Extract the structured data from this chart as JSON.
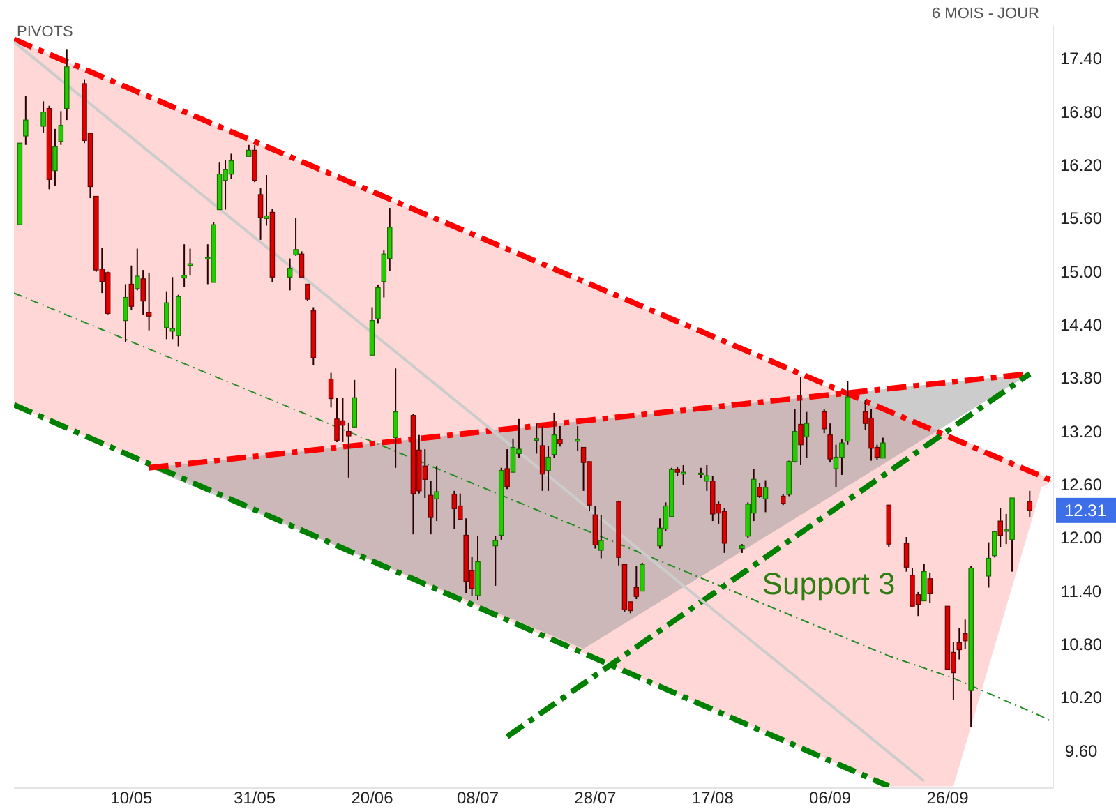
{
  "chart_data": {
    "type": "candlestick",
    "annotations": [
      "PIVOTS",
      "6 MOIS - JOUR",
      "Support 3",
      {
        "text": "12.31",
        "y": 12.31
      }
    ],
    "xlim": [
      "--04-20",
      "--10-14"
    ],
    "ylim": [
      9.18,
      17.78
    ],
    "xticks": [
      {
        "value": "--05-10",
        "label": "10/05"
      },
      {
        "value": "--05-31",
        "label": "31/05"
      },
      {
        "value": "--06-20",
        "label": "20/06"
      },
      {
        "value": "--07-08",
        "label": "08/07"
      },
      {
        "value": "--07-28",
        "label": "28/07"
      },
      {
        "value": "--08-17",
        "label": "17/08"
      },
      {
        "value": "--09-06",
        "label": "06/09"
      },
      {
        "value": "--09-26",
        "label": "26/09"
      }
    ],
    "yticks": [
      {
        "value": 9.6,
        "label": "9.60"
      },
      {
        "value": 10.2,
        "label": "10.20"
      },
      {
        "value": 10.8,
        "label": "10.80"
      },
      {
        "value": 11.4,
        "label": "11.40"
      },
      {
        "value": 12.0,
        "label": "12.00"
      },
      {
        "value": 12.6,
        "label": "12.60"
      },
      {
        "value": 13.2,
        "label": "13.20"
      },
      {
        "value": 13.8,
        "label": "13.80"
      },
      {
        "value": 14.4,
        "label": "14.40"
      },
      {
        "value": 15.0,
        "label": "15.00"
      },
      {
        "value": 15.6,
        "label": "15.60"
      },
      {
        "value": 16.2,
        "label": "16.20"
      },
      {
        "value": 16.8,
        "label": "16.80"
      },
      {
        "value": 17.4,
        "label": "17.40"
      }
    ],
    "x": [
      "--04-21",
      "--04-22",
      "--04-25",
      "--04-26",
      "--04-27",
      "--04-28",
      "--04-29",
      "--05-02",
      "--05-03",
      "--05-04",
      "--05-05",
      "--05-06",
      "--05-09",
      "--05-10",
      "--05-11",
      "--05-12",
      "--05-13",
      "--05-16",
      "--05-17",
      "--05-18",
      "--05-19",
      "--05-20",
      "--05-23",
      "--05-24",
      "--05-25",
      "--05-26",
      "--05-27",
      "--05-30",
      "--05-31",
      "--06-01",
      "--06-02",
      "--06-03",
      "--06-06",
      "--06-07",
      "--06-08",
      "--06-09",
      "--06-10",
      "--06-13",
      "--06-14",
      "--06-15",
      "--06-16",
      "--06-17",
      "--06-20",
      "--06-21",
      "--06-22",
      "--06-23",
      "--06-24",
      "--06-27",
      "--06-28",
      "--06-29",
      "--06-30",
      "--07-01",
      "--07-04",
      "--07-05",
      "--07-06",
      "--07-07",
      "--07-08",
      "--07-11",
      "--07-12",
      "--07-13",
      "--07-14",
      "--07-15",
      "--07-18",
      "--07-19",
      "--07-20",
      "--07-21",
      "--07-22",
      "--07-25",
      "--07-26",
      "--07-27",
      "--07-28",
      "--07-29",
      "--08-01",
      "--08-02",
      "--08-03",
      "--08-04",
      "--08-05",
      "--08-08",
      "--08-09",
      "--08-10",
      "--08-11",
      "--08-12",
      "--08-15",
      "--08-16",
      "--08-17",
      "--08-18",
      "--08-19",
      "--08-22",
      "--08-23",
      "--08-24",
      "--08-25",
      "--08-26",
      "--08-29",
      "--08-30",
      "--08-31",
      "--09-01",
      "--09-02",
      "--09-05",
      "--09-06",
      "--09-07",
      "--09-08",
      "--09-09",
      "--09-12",
      "--09-13",
      "--09-14",
      "--09-15",
      "--09-16",
      "--09-19",
      "--09-20",
      "--09-21",
      "--09-22",
      "--09-23",
      "--09-26",
      "--09-27",
      "--09-28",
      "--09-29",
      "--09-30",
      "--10-03",
      "--10-04",
      "--10-05",
      "--10-06",
      "--10-07",
      "--10-10"
    ],
    "ohlc": [
      [
        15.53,
        16.45,
        15.53,
        16.45
      ],
      [
        16.53,
        16.98,
        16.43,
        16.71
      ],
      [
        16.64,
        16.92,
        16.57,
        16.8
      ],
      [
        16.84,
        16.87,
        15.93,
        16.04
      ],
      [
        16.14,
        16.61,
        15.97,
        16.41
      ],
      [
        16.47,
        16.81,
        16.43,
        16.65
      ],
      [
        16.84,
        17.51,
        16.71,
        17.31
      ],
      [
        17.12,
        17.17,
        16.45,
        16.48
      ],
      [
        16.56,
        16.56,
        15.83,
        15.96
      ],
      [
        15.85,
        15.85,
        15.0,
        15.02
      ],
      [
        15.03,
        15.27,
        14.76,
        14.89
      ],
      [
        14.99,
        15.0,
        14.52,
        14.53
      ],
      [
        14.45,
        14.86,
        14.21,
        14.71
      ],
      [
        14.86,
        15.07,
        14.57,
        14.61
      ],
      [
        14.81,
        15.26,
        14.79,
        14.95
      ],
      [
        14.92,
        15.02,
        14.51,
        14.67
      ],
      [
        14.54,
        14.99,
        14.34,
        14.5
      ],
      [
        14.37,
        14.78,
        14.24,
        14.65
      ],
      [
        14.33,
        14.94,
        14.24,
        14.36
      ],
      [
        14.28,
        14.74,
        14.16,
        14.72
      ],
      [
        14.93,
        15.31,
        14.83,
        14.96
      ],
      [
        15.07,
        15.26,
        14.96,
        15.09
      ],
      [
        15.16,
        15.31,
        14.86,
        15.16
      ],
      [
        14.88,
        15.56,
        14.88,
        15.53
      ],
      [
        15.7,
        16.23,
        15.7,
        16.1
      ],
      [
        16.03,
        16.26,
        15.7,
        16.15
      ],
      [
        16.1,
        16.33,
        16.05,
        16.25
      ],
      [
        16.3,
        16.43,
        16.3,
        16.37
      ],
      [
        16.37,
        16.43,
        16.01,
        16.03
      ],
      [
        15.87,
        15.94,
        15.36,
        15.61
      ],
      [
        15.6,
        16.09,
        15.52,
        15.63
      ],
      [
        15.67,
        15.71,
        14.88,
        14.94
      ],
      [
        14.94,
        15.15,
        14.79,
        15.04
      ],
      [
        15.19,
        15.61,
        15.18,
        15.25
      ],
      [
        15.2,
        15.23,
        14.94,
        14.94
      ],
      [
        14.86,
        14.86,
        14.67,
        14.69
      ],
      [
        14.56,
        14.6,
        13.95,
        14.03
      ],
      [
        13.79,
        13.86,
        13.47,
        13.57
      ],
      [
        13.34,
        13.58,
        13.08,
        13.1
      ],
      [
        13.32,
        13.58,
        13.08,
        13.27
      ],
      [
        13.2,
        13.3,
        12.68,
        13.15
      ],
      [
        13.25,
        13.78,
        13.25,
        13.58
      ],
      [
        14.06,
        14.6,
        14.06,
        14.45
      ],
      [
        14.47,
        14.85,
        14.42,
        14.82
      ],
      [
        14.89,
        15.24,
        14.71,
        15.2
      ],
      [
        15.15,
        15.72,
        15.01,
        15.5
      ],
      [
        13.13,
        13.91,
        12.79,
        13.42
      ],
      [
        13.38,
        13.4,
        12.04,
        12.5
      ],
      [
        12.99,
        13.16,
        12.5,
        12.53
      ],
      [
        12.81,
        13.0,
        12.45,
        12.66
      ],
      [
        12.48,
        12.64,
        12.04,
        12.23
      ],
      [
        12.44,
        12.81,
        12.19,
        12.52
      ],
      [
        12.49,
        12.53,
        12.1,
        12.33
      ],
      [
        12.36,
        12.5,
        12.21,
        12.21
      ],
      [
        12.03,
        12.22,
        11.38,
        11.51
      ],
      [
        11.63,
        11.79,
        11.35,
        11.43
      ],
      [
        11.35,
        12.02,
        11.3,
        11.73
      ],
      [
        11.91,
        12.02,
        11.46,
        11.97
      ],
      [
        12.03,
        12.79,
        11.98,
        12.76
      ],
      [
        12.78,
        13.0,
        12.55,
        12.58
      ],
      [
        12.74,
        13.12,
        12.74,
        13.02
      ],
      [
        12.95,
        13.34,
        12.9,
        13.0
      ],
      [
        13.1,
        13.29,
        12.95,
        13.12
      ],
      [
        13.04,
        13.26,
        12.53,
        12.72
      ],
      [
        12.76,
        13.04,
        12.53,
        12.91
      ],
      [
        12.94,
        13.41,
        12.9,
        13.16
      ],
      [
        13.11,
        13.26,
        13.03,
        13.06
      ],
      [
        13.09,
        13.26,
        12.98,
        13.11
      ],
      [
        13.02,
        13.02,
        12.53,
        12.85
      ],
      [
        12.86,
        12.86,
        12.3,
        12.37
      ],
      [
        12.26,
        12.36,
        11.88,
        11.92
      ],
      [
        11.86,
        12.26,
        11.77,
        11.97
      ],
      [
        12.41,
        12.42,
        11.69,
        11.78
      ],
      [
        11.7,
        11.7,
        11.17,
        11.19
      ],
      [
        11.28,
        11.28,
        11.15,
        11.18
      ],
      [
        11.44,
        11.68,
        11.31,
        11.34
      ],
      [
        11.4,
        11.72,
        11.4,
        11.7
      ],
      [
        11.91,
        12.22,
        11.88,
        12.11
      ],
      [
        12.1,
        12.4,
        12.08,
        12.36
      ],
      [
        12.24,
        12.79,
        12.24,
        12.77
      ],
      [
        12.77,
        12.8,
        12.7,
        12.74
      ],
      [
        12.72,
        12.82,
        12.6,
        12.74
      ],
      [
        12.73,
        12.79,
        12.67,
        12.73
      ],
      [
        12.64,
        12.82,
        12.53,
        12.7
      ],
      [
        12.64,
        12.7,
        12.19,
        12.27
      ],
      [
        12.38,
        12.41,
        12.16,
        12.28
      ],
      [
        12.3,
        12.34,
        11.83,
        11.94
      ],
      [
        11.88,
        11.93,
        11.83,
        11.91
      ],
      [
        12.02,
        12.4,
        12.0,
        12.38
      ],
      [
        12.28,
        12.78,
        12.19,
        12.66
      ],
      [
        12.57,
        12.62,
        12.45,
        12.47
      ],
      [
        12.44,
        12.65,
        12.29,
        12.57
      ],
      [
        12.47,
        12.49,
        12.37,
        12.39
      ],
      [
        12.49,
        12.87,
        12.47,
        12.86
      ],
      [
        12.86,
        13.45,
        12.85,
        13.2
      ],
      [
        13.28,
        13.81,
        12.82,
        13.05
      ],
      [
        13.14,
        13.42,
        12.9,
        13.29
      ],
      [
        13.42,
        13.45,
        13.18,
        13.23
      ],
      [
        13.16,
        13.29,
        12.85,
        12.89
      ],
      [
        12.78,
        13.05,
        12.57,
        12.91
      ],
      [
        12.91,
        13.11,
        12.71,
        13.07
      ],
      [
        13.09,
        13.77,
        13.05,
        13.59
      ],
      [
        13.42,
        13.55,
        13.22,
        13.29
      ],
      [
        13.35,
        13.45,
        12.87,
        13.01
      ],
      [
        13.02,
        13.05,
        12.88,
        12.91
      ],
      [
        12.9,
        13.13,
        12.9,
        13.07
      ],
      [
        12.37,
        12.37,
        11.9,
        11.93
      ],
      [
        11.94,
        12.01,
        11.62,
        11.67
      ],
      [
        11.58,
        11.66,
        11.23,
        11.23
      ],
      [
        11.36,
        11.39,
        11.12,
        11.25
      ],
      [
        11.29,
        11.71,
        11.29,
        11.62
      ],
      [
        11.54,
        11.61,
        11.27,
        11.37
      ],
      [
        11.23,
        11.23,
        10.52,
        10.52
      ],
      [
        10.71,
        10.83,
        10.17,
        10.48
      ],
      [
        10.82,
        10.98,
        10.63,
        10.74
      ],
      [
        10.92,
        11.08,
        10.75,
        10.84
      ],
      [
        10.28,
        11.68,
        9.87,
        11.66
      ],
      [
        11.57,
        11.95,
        11.44,
        11.77
      ],
      [
        11.8,
        12.07,
        11.78,
        12.07
      ],
      [
        12.19,
        12.34,
        11.9,
        12.03
      ],
      [
        12.09,
        12.27,
        11.93,
        12.09
      ],
      [
        11.98,
        12.45,
        11.62,
        12.45
      ],
      [
        12.41,
        12.53,
        12.23,
        12.31
      ]
    ],
    "series": [
      {
        "type": "line",
        "color": "#228b22",
        "line_style": "dotted",
        "x": [
          "--04-20",
          "--09-16",
          "--09-27",
          "--10-12",
          "--10-14"
        ],
        "values": [
          14.76,
          10.67,
          10.42,
          9.99,
          9.92
        ],
        "lower": [
          13.5,
          9.2,
          9.2,
          12.57,
          12.64
        ],
        "upper": [
          17.62,
          13.41,
          13.15,
          12.71,
          12.64
        ]
      },
      {
        "type": "line",
        "color": "#ff0000",
        "line_style": "dashed",
        "x": [
          "--04-20",
          "--10-14"
        ],
        "values": [
          17.62,
          12.64
        ]
      },
      {
        "type": "line",
        "color": "#008000",
        "line_style": "dashed",
        "x": [
          "--04-20",
          "--09-16"
        ],
        "values": [
          13.5,
          9.2
        ]
      },
      {
        "type": "line",
        "color": "#ff0000",
        "line_style": "dashed",
        "x": [
          "--05-13",
          "--07-26",
          "--10-10"
        ],
        "values": [
          12.79,
          13.32,
          13.85
        ],
        "lower": [
          12.79,
          10.75,
          13.85
        ],
        "upper": [
          12.79,
          13.32,
          13.85
        ]
      },
      {
        "type": "line",
        "color": "#008000",
        "line_style": "dashed",
        "x": [
          "--07-13",
          "--10-10"
        ],
        "values": [
          9.76,
          13.85
        ]
      },
      {
        "type": "line",
        "color": "#cccccc",
        "line_style": "solid",
        "x": [
          "--04-20",
          "--09-22"
        ],
        "values": [
          17.59,
          9.26
        ]
      }
    ]
  }
}
